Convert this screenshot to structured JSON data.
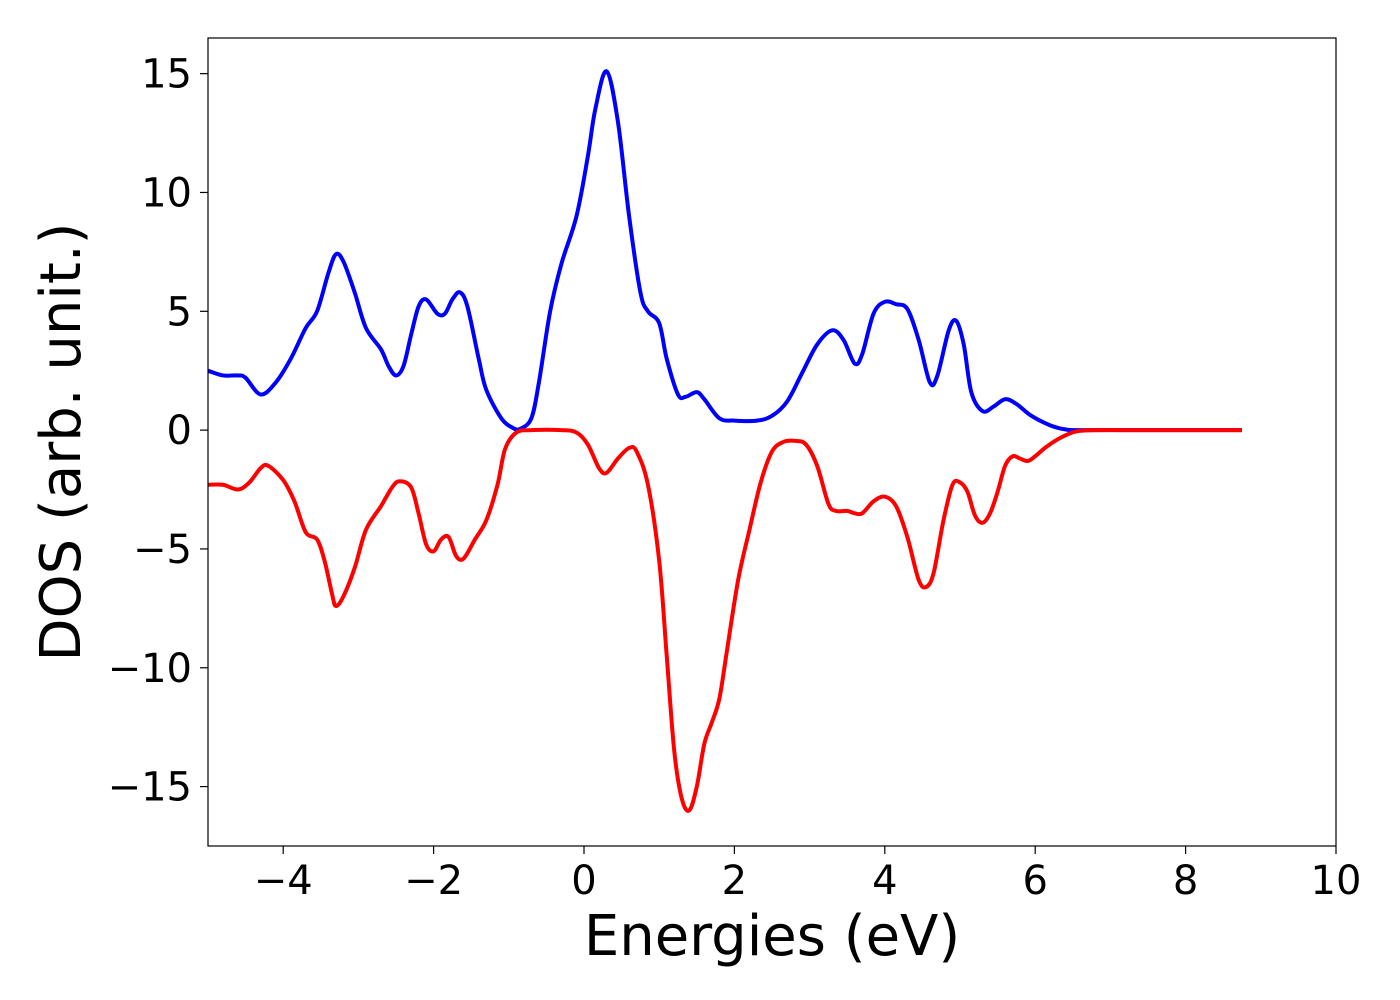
{
  "chart_data": {
    "type": "line",
    "xlabel": "Energies (eV)",
    "ylabel": "DOS (arb. unit.)",
    "xlim": [
      -5,
      10
    ],
    "ylim": [
      -17.5,
      16.5
    ],
    "xticks": [
      -4,
      -2,
      0,
      2,
      4,
      6,
      8,
      10
    ],
    "yticks": [
      -15,
      -10,
      -5,
      0,
      5,
      10,
      15
    ],
    "xtick_labels": [
      "−4",
      "−2",
      "0",
      "2",
      "4",
      "6",
      "8",
      "10"
    ],
    "ytick_labels": [
      "−15",
      "−10",
      "−5",
      "0",
      "5",
      "10",
      "15"
    ],
    "grid": false,
    "legend": "none",
    "series": [
      {
        "color": "#0000ff",
        "points": [
          [
            -5.0,
            2.5
          ],
          [
            -4.8,
            2.3
          ],
          [
            -4.6,
            2.3
          ],
          [
            -4.5,
            2.2
          ],
          [
            -4.3,
            1.5
          ],
          [
            -4.1,
            2.0
          ],
          [
            -3.9,
            3.0
          ],
          [
            -3.7,
            4.3
          ],
          [
            -3.55,
            5.0
          ],
          [
            -3.4,
            6.6
          ],
          [
            -3.3,
            7.4
          ],
          [
            -3.2,
            7.1
          ],
          [
            -3.05,
            5.8
          ],
          [
            -2.9,
            4.3
          ],
          [
            -2.7,
            3.4
          ],
          [
            -2.6,
            2.7
          ],
          [
            -2.5,
            2.3
          ],
          [
            -2.4,
            2.7
          ],
          [
            -2.3,
            4.0
          ],
          [
            -2.2,
            5.2
          ],
          [
            -2.1,
            5.5
          ],
          [
            -1.95,
            4.9
          ],
          [
            -1.85,
            4.9
          ],
          [
            -1.75,
            5.5
          ],
          [
            -1.65,
            5.8
          ],
          [
            -1.55,
            5.2
          ],
          [
            -1.4,
            3.0
          ],
          [
            -1.3,
            1.7
          ],
          [
            -1.1,
            0.5
          ],
          [
            -0.95,
            0.1
          ],
          [
            -0.85,
            0.05
          ],
          [
            -0.7,
            0.5
          ],
          [
            -0.6,
            2.0
          ],
          [
            -0.45,
            5.0
          ],
          [
            -0.3,
            7.0
          ],
          [
            -0.1,
            9.0
          ],
          [
            0.05,
            11.5
          ],
          [
            0.15,
            13.5
          ],
          [
            0.3,
            15.1
          ],
          [
            0.45,
            13.0
          ],
          [
            0.6,
            9.0
          ],
          [
            0.75,
            5.8
          ],
          [
            0.85,
            5.0
          ],
          [
            1.0,
            4.5
          ],
          [
            1.1,
            3.0
          ],
          [
            1.25,
            1.5
          ],
          [
            1.35,
            1.4
          ],
          [
            1.5,
            1.6
          ],
          [
            1.6,
            1.3
          ],
          [
            1.8,
            0.5
          ],
          [
            2.0,
            0.4
          ],
          [
            2.3,
            0.4
          ],
          [
            2.5,
            0.6
          ],
          [
            2.7,
            1.2
          ],
          [
            2.9,
            2.4
          ],
          [
            3.1,
            3.6
          ],
          [
            3.3,
            4.2
          ],
          [
            3.45,
            3.8
          ],
          [
            3.6,
            2.8
          ],
          [
            3.7,
            3.2
          ],
          [
            3.85,
            4.9
          ],
          [
            4.0,
            5.4
          ],
          [
            4.15,
            5.3
          ],
          [
            4.3,
            5.1
          ],
          [
            4.45,
            3.8
          ],
          [
            4.6,
            2.0
          ],
          [
            4.7,
            2.3
          ],
          [
            4.85,
            4.2
          ],
          [
            4.95,
            4.6
          ],
          [
            5.05,
            3.6
          ],
          [
            5.15,
            1.6
          ],
          [
            5.3,
            0.8
          ],
          [
            5.45,
            1.0
          ],
          [
            5.6,
            1.3
          ],
          [
            5.75,
            1.1
          ],
          [
            5.95,
            0.6
          ],
          [
            6.2,
            0.2
          ],
          [
            6.4,
            0.03
          ],
          [
            6.6,
            0.0
          ],
          [
            7.5,
            0.0
          ],
          [
            8.75,
            0.0
          ]
        ]
      },
      {
        "color": "#ff0000",
        "points": [
          [
            -5.0,
            -2.3
          ],
          [
            -4.8,
            -2.3
          ],
          [
            -4.6,
            -2.5
          ],
          [
            -4.45,
            -2.2
          ],
          [
            -4.3,
            -1.6
          ],
          [
            -4.2,
            -1.5
          ],
          [
            -4.0,
            -2.1
          ],
          [
            -3.85,
            -3.0
          ],
          [
            -3.7,
            -4.3
          ],
          [
            -3.55,
            -4.6
          ],
          [
            -3.45,
            -5.5
          ],
          [
            -3.35,
            -6.9
          ],
          [
            -3.3,
            -7.4
          ],
          [
            -3.2,
            -7.0
          ],
          [
            -3.05,
            -5.8
          ],
          [
            -2.9,
            -4.2
          ],
          [
            -2.7,
            -3.2
          ],
          [
            -2.55,
            -2.4
          ],
          [
            -2.45,
            -2.15
          ],
          [
            -2.3,
            -2.4
          ],
          [
            -2.2,
            -3.5
          ],
          [
            -2.1,
            -4.8
          ],
          [
            -2.0,
            -5.1
          ],
          [
            -1.9,
            -4.6
          ],
          [
            -1.8,
            -4.5
          ],
          [
            -1.7,
            -5.3
          ],
          [
            -1.6,
            -5.4
          ],
          [
            -1.45,
            -4.6
          ],
          [
            -1.3,
            -3.8
          ],
          [
            -1.15,
            -2.3
          ],
          [
            -1.05,
            -0.8
          ],
          [
            -0.9,
            -0.1
          ],
          [
            -0.7,
            0.0
          ],
          [
            -0.3,
            0.0
          ],
          [
            -0.1,
            -0.1
          ],
          [
            0.05,
            -0.6
          ],
          [
            0.2,
            -1.6
          ],
          [
            0.3,
            -1.8
          ],
          [
            0.45,
            -1.2
          ],
          [
            0.6,
            -0.75
          ],
          [
            0.7,
            -0.9
          ],
          [
            0.85,
            -2.3
          ],
          [
            1.0,
            -5.5
          ],
          [
            1.1,
            -9.5
          ],
          [
            1.2,
            -13.5
          ],
          [
            1.3,
            -15.5
          ],
          [
            1.4,
            -16.0
          ],
          [
            1.5,
            -15.0
          ],
          [
            1.6,
            -13.2
          ],
          [
            1.7,
            -12.3
          ],
          [
            1.8,
            -11.3
          ],
          [
            1.9,
            -9.3
          ],
          [
            2.05,
            -6.3
          ],
          [
            2.2,
            -4.2
          ],
          [
            2.35,
            -2.2
          ],
          [
            2.5,
            -0.9
          ],
          [
            2.65,
            -0.5
          ],
          [
            2.8,
            -0.45
          ],
          [
            2.95,
            -0.6
          ],
          [
            3.1,
            -1.5
          ],
          [
            3.25,
            -3.1
          ],
          [
            3.35,
            -3.4
          ],
          [
            3.5,
            -3.4
          ],
          [
            3.6,
            -3.5
          ],
          [
            3.7,
            -3.5
          ],
          [
            3.85,
            -3.0
          ],
          [
            4.0,
            -2.8
          ],
          [
            4.15,
            -3.2
          ],
          [
            4.3,
            -4.5
          ],
          [
            4.45,
            -6.3
          ],
          [
            4.55,
            -6.6
          ],
          [
            4.65,
            -6.0
          ],
          [
            4.78,
            -3.8
          ],
          [
            4.9,
            -2.3
          ],
          [
            5.0,
            -2.2
          ],
          [
            5.1,
            -2.6
          ],
          [
            5.2,
            -3.6
          ],
          [
            5.3,
            -3.9
          ],
          [
            5.4,
            -3.5
          ],
          [
            5.5,
            -2.6
          ],
          [
            5.6,
            -1.5
          ],
          [
            5.7,
            -1.1
          ],
          [
            5.8,
            -1.2
          ],
          [
            5.9,
            -1.3
          ],
          [
            6.0,
            -1.1
          ],
          [
            6.15,
            -0.7
          ],
          [
            6.35,
            -0.3
          ],
          [
            6.55,
            -0.05
          ],
          [
            6.8,
            0.0
          ],
          [
            7.5,
            0.0
          ],
          [
            8.75,
            0.0
          ]
        ]
      }
    ]
  }
}
